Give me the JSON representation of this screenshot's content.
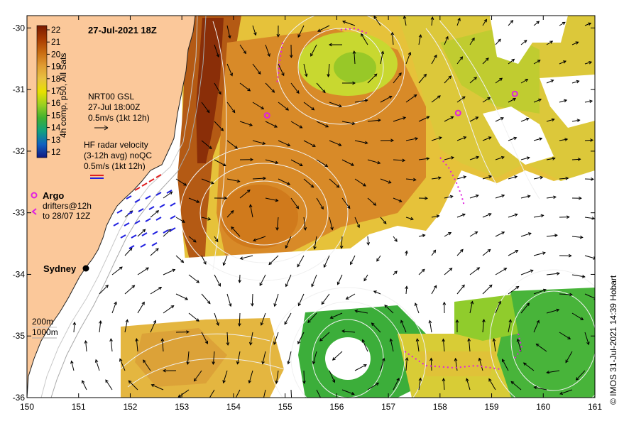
{
  "map": {
    "title": "27-Jul-2021 18Z",
    "credit": "© IMOS 31-Jul-2021 14:39 Hobart",
    "lon_range": [
      150,
      161
    ],
    "lat_range": [
      -36,
      -29.8
    ],
    "lon_ticks": [
      "150",
      "151",
      "152",
      "153",
      "154",
      "155",
      "156",
      "157",
      "158",
      "159",
      "160",
      "161"
    ],
    "lat_ticks": [
      "-30",
      "-31",
      "-32",
      "-33",
      "-34",
      "-35",
      "-36"
    ],
    "colorbar": {
      "label": "4h comp, p50, All Sats",
      "ticks": [
        "22",
        "21",
        "20",
        "19",
        "18",
        "17",
        "16",
        "15",
        "14",
        "13",
        "12"
      ],
      "colors": [
        "#7a1a00",
        "#a83a00",
        "#c86a10",
        "#e09a30",
        "#e8c040",
        "#f0e000",
        "#9ad020",
        "#40b030",
        "#10a080",
        "#1060c0",
        "#101880"
      ]
    },
    "nrt_legend": {
      "line1": "NRT00 GSL",
      "line2": "27-Jul 18:00Z",
      "line3": "0.5m/s (1kt 12h)"
    },
    "hf_legend": {
      "line1": "HF radar velocity",
      "line2": "(3-12h avg) noQC",
      "line3": "0.5m/s (1kt 12h)"
    },
    "argo_legend": {
      "label": "Argo"
    },
    "drifter_legend": {
      "line1": "drifters@12h",
      "line2": "to 28/07 12Z"
    },
    "city": {
      "name": "Sydney"
    },
    "depth_legend": {
      "line1": "200m",
      "line2": "1000m"
    },
    "colors": {
      "land": "#fbc89a",
      "argo": "#e020e0",
      "hf_red": "#e02020",
      "hf_blue": "#2020e0",
      "contour": "#e8e8e8"
    },
    "argo_floats": [
      {
        "lon": 154.65,
        "lat": -31.42
      },
      {
        "lon": 158.35,
        "lat": -31.38
      },
      {
        "lon": 159.45,
        "lat": -31.07
      }
    ]
  }
}
